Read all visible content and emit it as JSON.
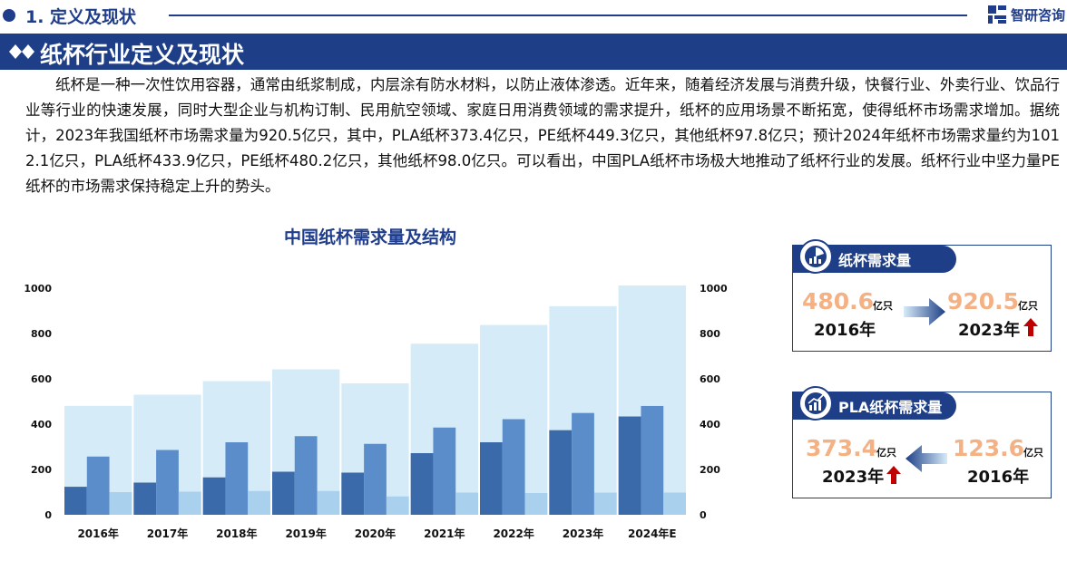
{
  "header": {
    "section": "1. 定义及现状",
    "brand": "智研咨询",
    "banner_title": "纸杯行业定义及现状"
  },
  "paragraph": "纸杯是一种一次性饮用容器，通常由纸浆制成，内层涂有防水材料，以防止液体渗透。近年来，随着经济发展与消费升级，快餐行业、外卖行业、饮品行业等行业的快速发展，同时大型企业与机构订制、民用航空领域、家庭日用消费领域的需求提升，纸杯的应用场景不断拓宽，使得纸杯市场需求增加。据统计，2023年我国纸杯市场需求量为920.5亿只，其中，PLA纸杯373.4亿只，PE纸杯449.3亿只，其他纸杯97.8亿只；预计2024年纸杯市场需求量约为1012.1亿只，PLA纸杯433.9亿只，PE纸杯480.2亿只，其他纸杯98.0亿只。可以看出，中国PLA纸杯市场极大地推动了纸杯行业的发展。纸杯行业中坚力量PE纸杯的市场需求保持稳定上升的势头。",
  "chart_data": {
    "type": "bar",
    "title": "中国纸杯需求量及结构",
    "categories": [
      "2016年",
      "2017年",
      "2018年",
      "2019年",
      "2020年",
      "2021年",
      "2022年",
      "2023年",
      "2024年E"
    ],
    "series": [
      {
        "values": [
          480.6,
          530,
          590,
          642,
          580,
          755,
          838,
          920.5,
          1012.1
        ]
      },
      {
        "values": [
          123.6,
          142,
          165,
          190,
          186,
          272,
          320,
          373.4,
          433.9
        ]
      },
      {
        "values": [
          257,
          286,
          320,
          347,
          313,
          385,
          422,
          449.3,
          480.2
        ]
      },
      {
        "values": [
          100,
          102,
          105,
          105,
          81,
          98,
          96,
          97.8,
          98.0
        ]
      }
    ],
    "ylim": [
      0,
      1000
    ],
    "y_ticks": [
      0,
      200,
      400,
      600,
      800,
      1000
    ],
    "colors": [
      "#d6ebf8",
      "#3a6aaa",
      "#5b8dcb",
      "#a9d1ee"
    ]
  },
  "card1": {
    "title": "纸杯需求量",
    "left_value": "480.6",
    "left_unit": "亿只",
    "left_year": "2016年",
    "right_value": "920.5",
    "right_unit": "亿只",
    "right_year": "2023年"
  },
  "card2": {
    "title": "PLA纸杯需求量",
    "left_value": "373.4",
    "left_unit": "亿只",
    "left_year": "2023年",
    "right_value": "123.6",
    "right_unit": "亿只",
    "right_year": "2016年"
  },
  "icons": [
    "logo-icon",
    "data-icon",
    "bar-chart-icon",
    "right-arrow-icon",
    "left-arrow-icon",
    "up-arrow-icon"
  ]
}
